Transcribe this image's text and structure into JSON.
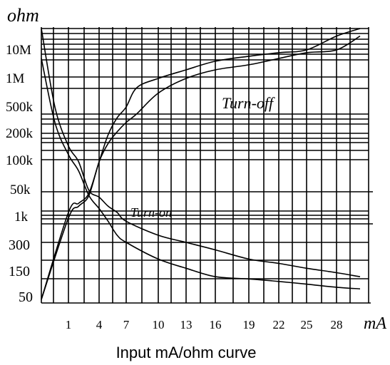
{
  "chart_data": {
    "type": "line",
    "ylabel": "ohm",
    "xlabel": "mA",
    "caption": "Input mA/ohm curve",
    "x_ticks": [
      "1",
      "4",
      "7",
      "10",
      "13",
      "16",
      "19",
      "22",
      "25",
      "28"
    ],
    "y_ticks": [
      "10M",
      "1M",
      "500k",
      "200k",
      "100k",
      "50k",
      "1k",
      "300",
      "150",
      "50"
    ],
    "annotations": [
      "Turn-off",
      "Turn-on"
    ],
    "series": [
      {
        "key": "turn_off_upper",
        "points": [
          [
            0,
            50
          ],
          [
            1,
            1000
          ],
          [
            2,
            5000
          ],
          [
            3,
            30000
          ],
          [
            4,
            100000
          ],
          [
            5,
            200000
          ],
          [
            6,
            350000
          ],
          [
            7,
            500000
          ],
          [
            8,
            800000
          ],
          [
            10,
            1000000
          ],
          [
            13,
            2000000
          ],
          [
            16,
            4000000
          ],
          [
            19,
            6000000
          ],
          [
            22,
            8000000
          ],
          [
            25,
            10000000
          ],
          [
            28,
            13000000
          ],
          [
            30,
            15000000
          ]
        ]
      },
      {
        "key": "turn_off_lower",
        "points": [
          [
            0,
            50
          ],
          [
            1,
            800
          ],
          [
            2,
            3000
          ],
          [
            3,
            20000
          ],
          [
            4,
            100000
          ],
          [
            5,
            160000
          ],
          [
            6,
            220000
          ],
          [
            7,
            300000
          ],
          [
            8,
            400000
          ],
          [
            10,
            700000
          ],
          [
            13,
            1000000
          ],
          [
            16,
            2000000
          ],
          [
            19,
            3000000
          ],
          [
            22,
            5000000
          ],
          [
            25,
            8000000
          ],
          [
            28,
            10000000
          ],
          [
            30,
            13000000
          ]
        ]
      },
      {
        "key": "turn_on_upper",
        "points": [
          [
            0,
            15000000
          ],
          [
            0.5,
            500000
          ],
          [
            1,
            150000
          ],
          [
            2,
            100000
          ],
          [
            3,
            50000
          ],
          [
            4,
            15000
          ],
          [
            5,
            3000
          ],
          [
            6,
            1000
          ],
          [
            7,
            700
          ],
          [
            10,
            400
          ],
          [
            13,
            300
          ],
          [
            16,
            250
          ],
          [
            19,
            200
          ],
          [
            22,
            180
          ],
          [
            25,
            160
          ],
          [
            28,
            140
          ],
          [
            30,
            120
          ]
        ]
      },
      {
        "key": "turn_on_lower",
        "points": [
          [
            0,
            5000000
          ],
          [
            0.5,
            300000
          ],
          [
            1,
            120000
          ],
          [
            2,
            80000
          ],
          [
            3,
            20000
          ],
          [
            4,
            2000
          ],
          [
            5,
            700
          ],
          [
            6,
            400
          ],
          [
            7,
            300
          ],
          [
            10,
            200
          ],
          [
            13,
            160
          ],
          [
            16,
            120
          ],
          [
            19,
            110
          ],
          [
            22,
            100
          ],
          [
            25,
            90
          ],
          [
            28,
            80
          ],
          [
            30,
            75
          ]
        ]
      }
    ]
  }
}
